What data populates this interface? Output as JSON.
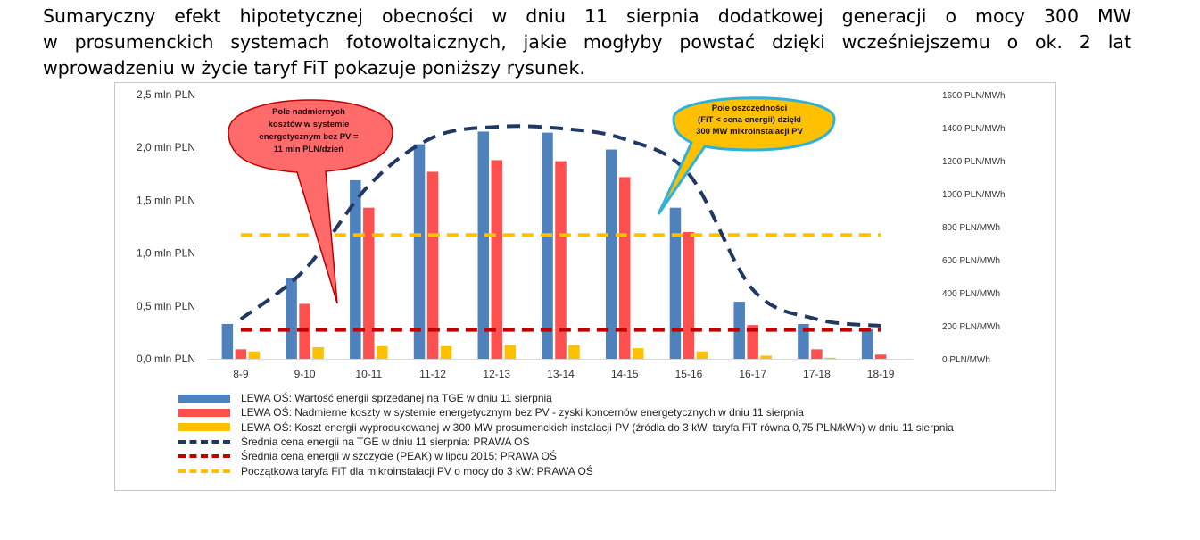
{
  "intro": {
    "line1": "Sumaryczny efekt hipotetycznej obecności w dniu 11 sierpnia dodatkowej generacji o mocy 300 MW",
    "line2": "w prosumenckich systemach fotowoltaicznych, jakie mogłyby powstać dzięki wcześniejszemu o ok. 2 lat",
    "line3": "wprowadzeniu w życie taryf FiT pokazuje poniższy rysunek."
  },
  "chart_data": {
    "type": "bar",
    "categories": [
      "8-9",
      "9-10",
      "10-11",
      "11-12",
      "12-13",
      "13-14",
      "14-15",
      "15-16",
      "16-17",
      "17-18",
      "18-19"
    ],
    "left_axis": {
      "ylim": [
        0,
        2.5
      ],
      "ticks": [
        "0,0 mln PLN",
        "0,5 mln PLN",
        "1,0 mln PLN",
        "1,5 mln PLN",
        "2,0 mln PLN",
        "2,5 mln PLN"
      ]
    },
    "right_axis": {
      "ylim": [
        0,
        1600
      ],
      "ticks": [
        "0 PLN/MWh",
        "200 PLN/MWh",
        "400 PLN/MWh",
        "600 PLN/MWh",
        "800 PLN/MWh",
        "1000 PLN/MWh",
        "1200 PLN/MWh",
        "1400 PLN/MWh",
        "1600 PLN/MWh"
      ]
    },
    "bar_series": [
      {
        "name": "LEWA OŚ: Wartość energii sprzedanej na TGE w dniu 11 sierpnia",
        "color": "#4f81bd",
        "values": [
          0.33,
          0.76,
          1.69,
          2.03,
          2.15,
          2.14,
          1.98,
          1.43,
          0.54,
          0.33,
          0.28
        ]
      },
      {
        "name": "LEWA OŚ: Nadmierne koszty w systemie energetycznym bez PV - zyski koncernów energetycznych w dniu 11 sierpnia",
        "color": "#ff5050",
        "values": [
          0.09,
          0.52,
          1.43,
          1.77,
          1.88,
          1.87,
          1.72,
          1.2,
          0.32,
          0.09,
          0.04
        ]
      },
      {
        "name": "LEWA OŚ: Koszt energii wyprodukowanej w 300 MW prosumenckich instalacji PV (źródła do 3 kW, taryfa FiT równa 0,75 PLN/kWh) w dniu 11 sierpnia",
        "color": "#ffc000",
        "values": [
          0.07,
          0.11,
          0.12,
          0.12,
          0.13,
          0.13,
          0.1,
          0.07,
          0.03,
          0.01,
          0.0
        ]
      }
    ],
    "line_series": [
      {
        "name": "Średnia cena energii na TGE w dniu 11 sierpnia: PRAWA OŚ",
        "color": "#1f3864",
        "values": [
          240,
          540,
          1050,
          1340,
          1405,
          1395,
          1330,
          1120,
          420,
          240,
          200
        ]
      },
      {
        "name": "Średnia cena energii w szczycie (PEAK) w lipcu 2015: PRAWA OŚ",
        "color": "#c00000",
        "values": [
          175,
          175,
          175,
          175,
          175,
          175,
          175,
          175,
          175,
          175,
          175
        ]
      },
      {
        "name": "Początkowa taryfa FiT dla mikroinstalacji PV o mocy do 3 kW: PRAWA OŚ",
        "color": "#ffc000",
        "values": [
          750,
          750,
          750,
          750,
          750,
          750,
          750,
          750,
          750,
          750,
          750
        ]
      }
    ],
    "annotations": [
      {
        "text": [
          "Pole nadmiernych",
          "kosztów w systemie",
          "energetycznym bez PV =",
          "11 mln PLN/dzień"
        ],
        "fill": "#ff6b6b",
        "stroke": "#c00000"
      },
      {
        "text": [
          "Pole oszczędności",
          "(FiT < cena energii) dzięki",
          "300 MW mikroinstalacji  PV"
        ],
        "fill": "#ffc000",
        "stroke": "#2fb2d8"
      }
    ]
  }
}
